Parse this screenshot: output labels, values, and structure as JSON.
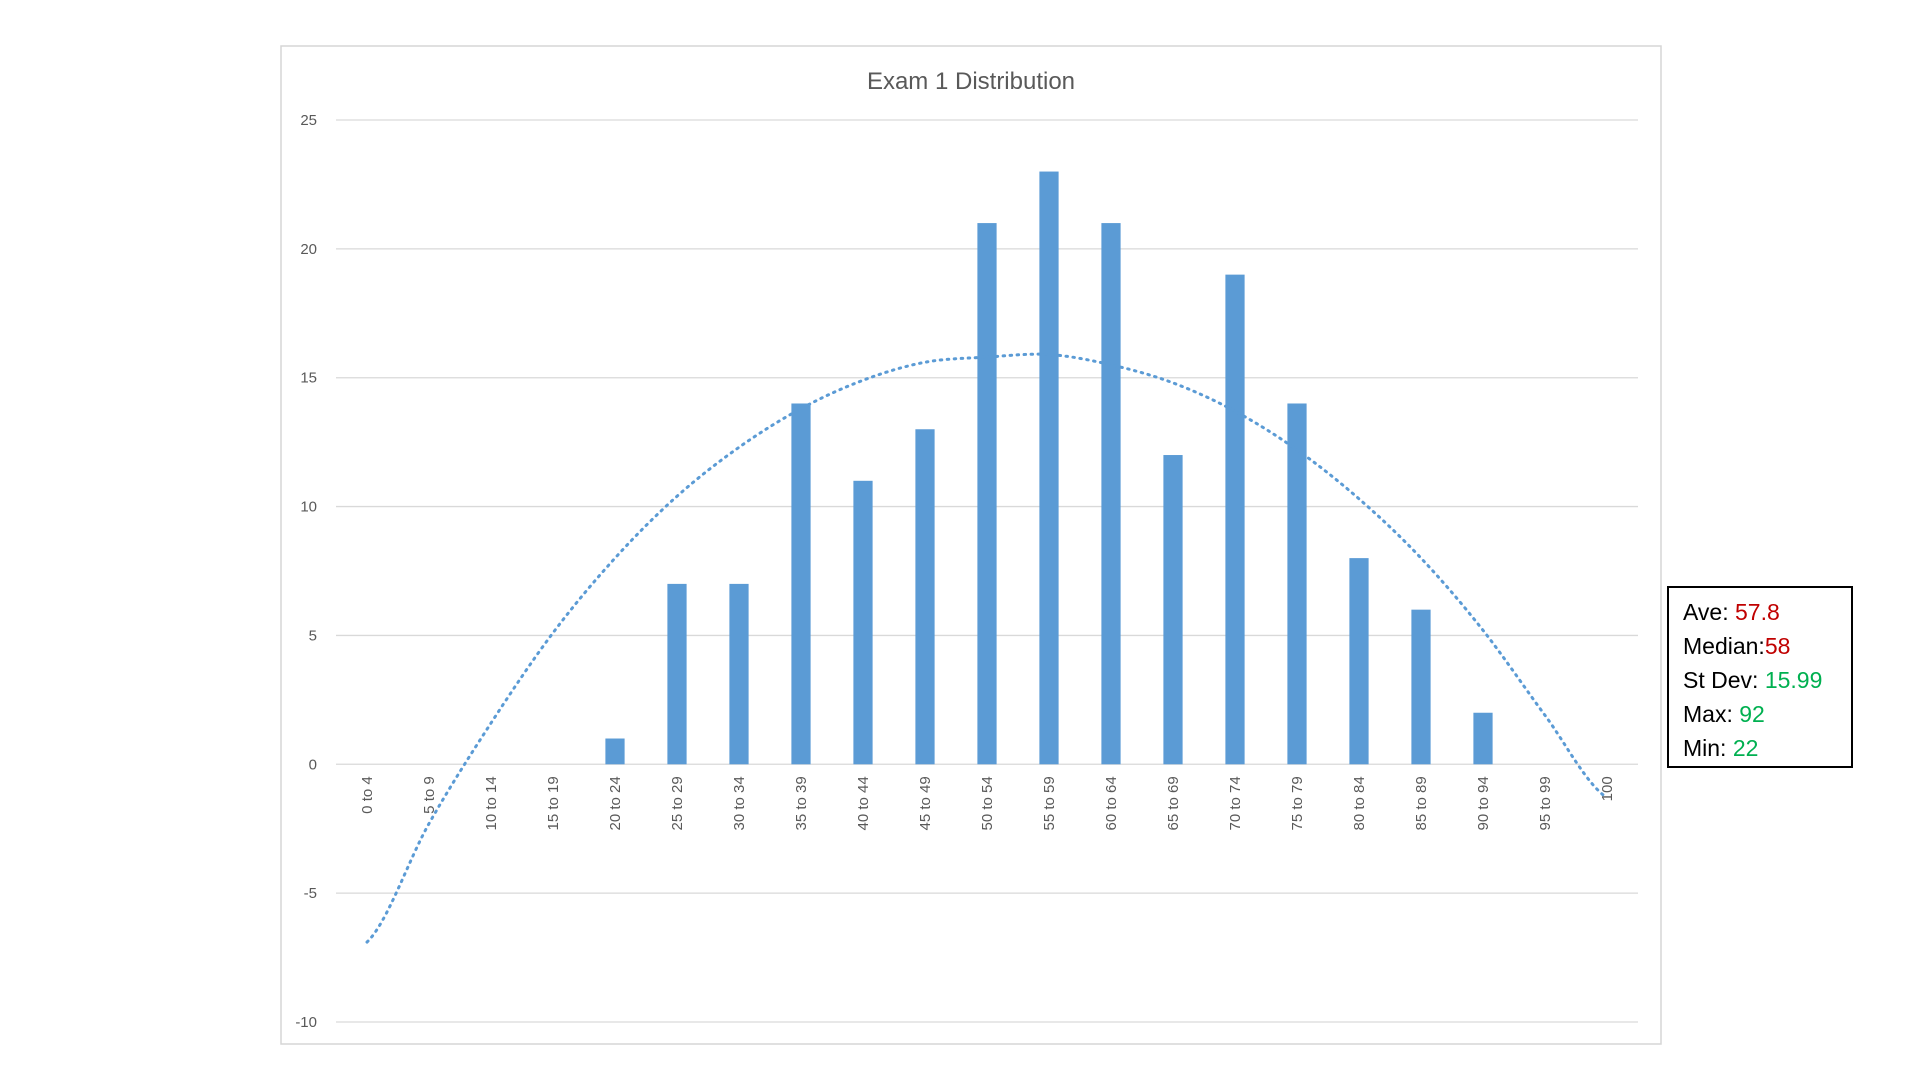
{
  "chart_data": {
    "type": "bar",
    "title": "Exam 1 Distribution",
    "xlabel": "",
    "ylabel": "",
    "ylim": [
      -10,
      25
    ],
    "yticks": [
      -10,
      -5,
      0,
      5,
      10,
      15,
      20,
      25
    ],
    "grid": true,
    "legend": "none",
    "categories": [
      "0 to 4",
      "5 to 9",
      "10 to 14",
      "15 to 19",
      "20 to 24",
      "25 to 29",
      "30 to 34",
      "35 to 39",
      "40 to 44",
      "45 to 49",
      "50 to 54",
      "55 to 59",
      "60 to 64",
      "65 to 69",
      "70 to 74",
      "75 to 79",
      "80 to 84",
      "85 to 89",
      "90 to 94",
      "95 to 99",
      "100"
    ],
    "values": [
      0,
      0,
      0,
      0,
      1,
      7,
      7,
      14,
      11,
      13,
      21,
      23,
      21,
      12,
      19,
      14,
      8,
      6,
      2,
      0,
      0
    ],
    "trendline": {
      "type": "polynomial",
      "style": "dotted",
      "values": [
        -6.9,
        -2.3,
        1.6,
        5.1,
        8.0,
        10.4,
        12.3,
        13.8,
        14.9,
        15.6,
        15.8,
        15.9,
        15.5,
        14.8,
        13.7,
        12.2,
        10.3,
        8.0,
        5.2,
        1.9,
        -1.3
      ]
    },
    "colors": {
      "bar": "#5b9bd5",
      "trendline": "#5b9bd5",
      "grid": "#d9d9d9"
    }
  },
  "stats": {
    "average": {
      "label": "Ave: ",
      "value": "57.8",
      "color": "#c00000"
    },
    "median": {
      "label": "Median:",
      "value": "58",
      "color": "#c00000"
    },
    "stdev": {
      "label": "St Dev: ",
      "value": "15.99",
      "color": "#00b050"
    },
    "max": {
      "label": "Max: ",
      "value": "92",
      "color": "#00b050"
    },
    "min": {
      "label": "Min: ",
      "value": "22",
      "color": "#00b050"
    }
  }
}
